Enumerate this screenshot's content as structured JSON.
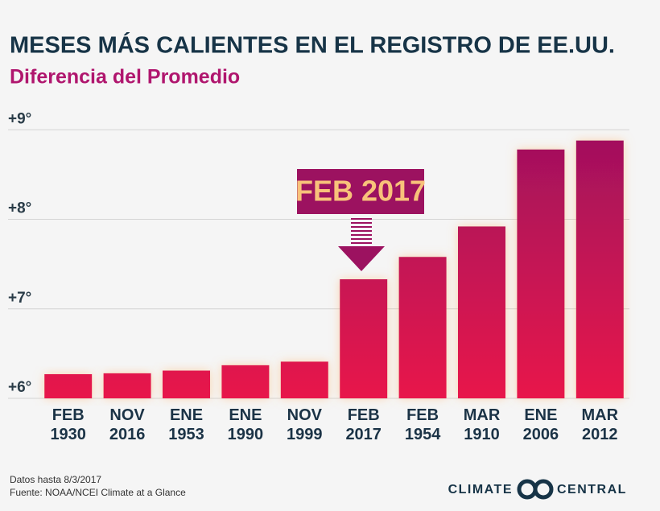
{
  "chart_data": {
    "type": "bar",
    "title": "MESES MÁS CALIENTES EN EL REGISTRO DE EE.UU.",
    "subtitle": "Diferencia del Promedio",
    "categories": [
      "FEB 1930",
      "NOV 2016",
      "ENE 1953",
      "ENE 1990",
      "NOV 1999",
      "FEB 2017",
      "FEB 1954",
      "MAR 1910",
      "ENE 2006",
      "MAR 2012"
    ],
    "values": [
      6.27,
      6.28,
      6.31,
      6.37,
      6.41,
      7.33,
      7.58,
      7.92,
      8.78,
      8.88
    ],
    "color": "#e8194b",
    "color_top": "#a0105e",
    "ylim": [
      6,
      9.2
    ],
    "yticks": [
      {
        "value": 6,
        "label": "+6°"
      },
      {
        "value": 7,
        "label": "+7°"
      },
      {
        "value": 8,
        "label": "+8°"
      },
      {
        "value": 9,
        "label": "+9°"
      }
    ],
    "grid": true,
    "annotation": "FEB 2017",
    "footnotes": [
      "Datos hasta 8/3/2017",
      "Fuente: NOAA/NCEI Climate at a Glance"
    ],
    "logo": [
      "CLIMATE",
      "CENTRAL"
    ]
  }
}
